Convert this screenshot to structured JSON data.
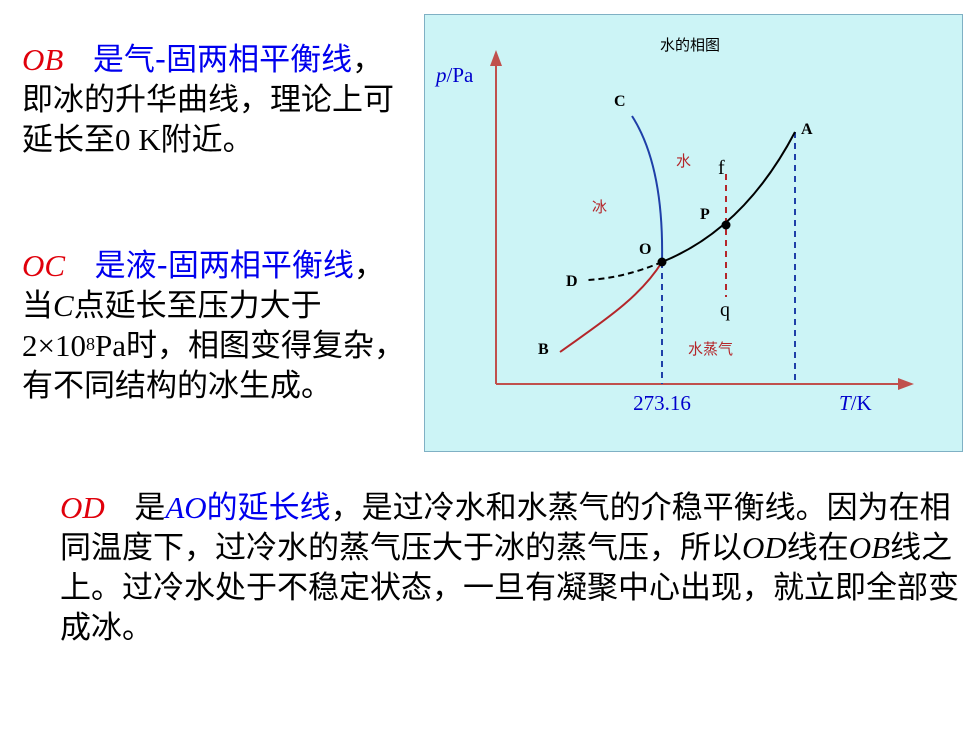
{
  "para1": {
    "label": "OB",
    "title": "是气-固两相平衡线",
    "rest1": "，即冰的升华曲线，理论上可延长至",
    "value": "0 K",
    "rest2": "附近。"
  },
  "para2": {
    "label": "OC",
    "title": "是液-固两相平衡线",
    "rest1": "，当",
    "c": "C",
    "rest2": "点延长至压力大于",
    "pressure": "2×10",
    "exp": "8",
    "unit": "Pa",
    "rest3": "时，相图变得复杂，有不同结构的冰生成。"
  },
  "para3": {
    "label": "OD",
    "t1": "是",
    "ao": "AO",
    "t2": "的延长线",
    "t3": "，是过冷水和水蒸气的介稳平衡线。因为在相同温度下，过冷水的蒸气压大于冰的蒸气压，所以",
    "od": "OD",
    "t4": "线在",
    "ob": "OB",
    "t5": "线之上。过冷水处于不稳定状态，一旦有凝聚中心出现，就立即全部变成冰。"
  },
  "diagram": {
    "title": "水的相图",
    "ylabel_p": "p",
    "ylabel_unit": "/Pa",
    "xlabel_t": "T",
    "xlabel_unit": "/K",
    "tick": "273.16",
    "points": {
      "A": "A",
      "B": "B",
      "C": "C",
      "D": "D",
      "O": "O",
      "P": "P",
      "f": "f",
      "q": "q"
    },
    "regions": {
      "water": "水",
      "ice": "冰",
      "vapor": "水蒸气"
    },
    "colors": {
      "background": "#ccf4f6",
      "border": "#7fb0c4",
      "axis": "#c0504d",
      "oc_line": "#1f3fa8",
      "ob_line": "#b4262a",
      "text_red": "#e0000b",
      "text_blue": "#0000ee"
    }
  }
}
